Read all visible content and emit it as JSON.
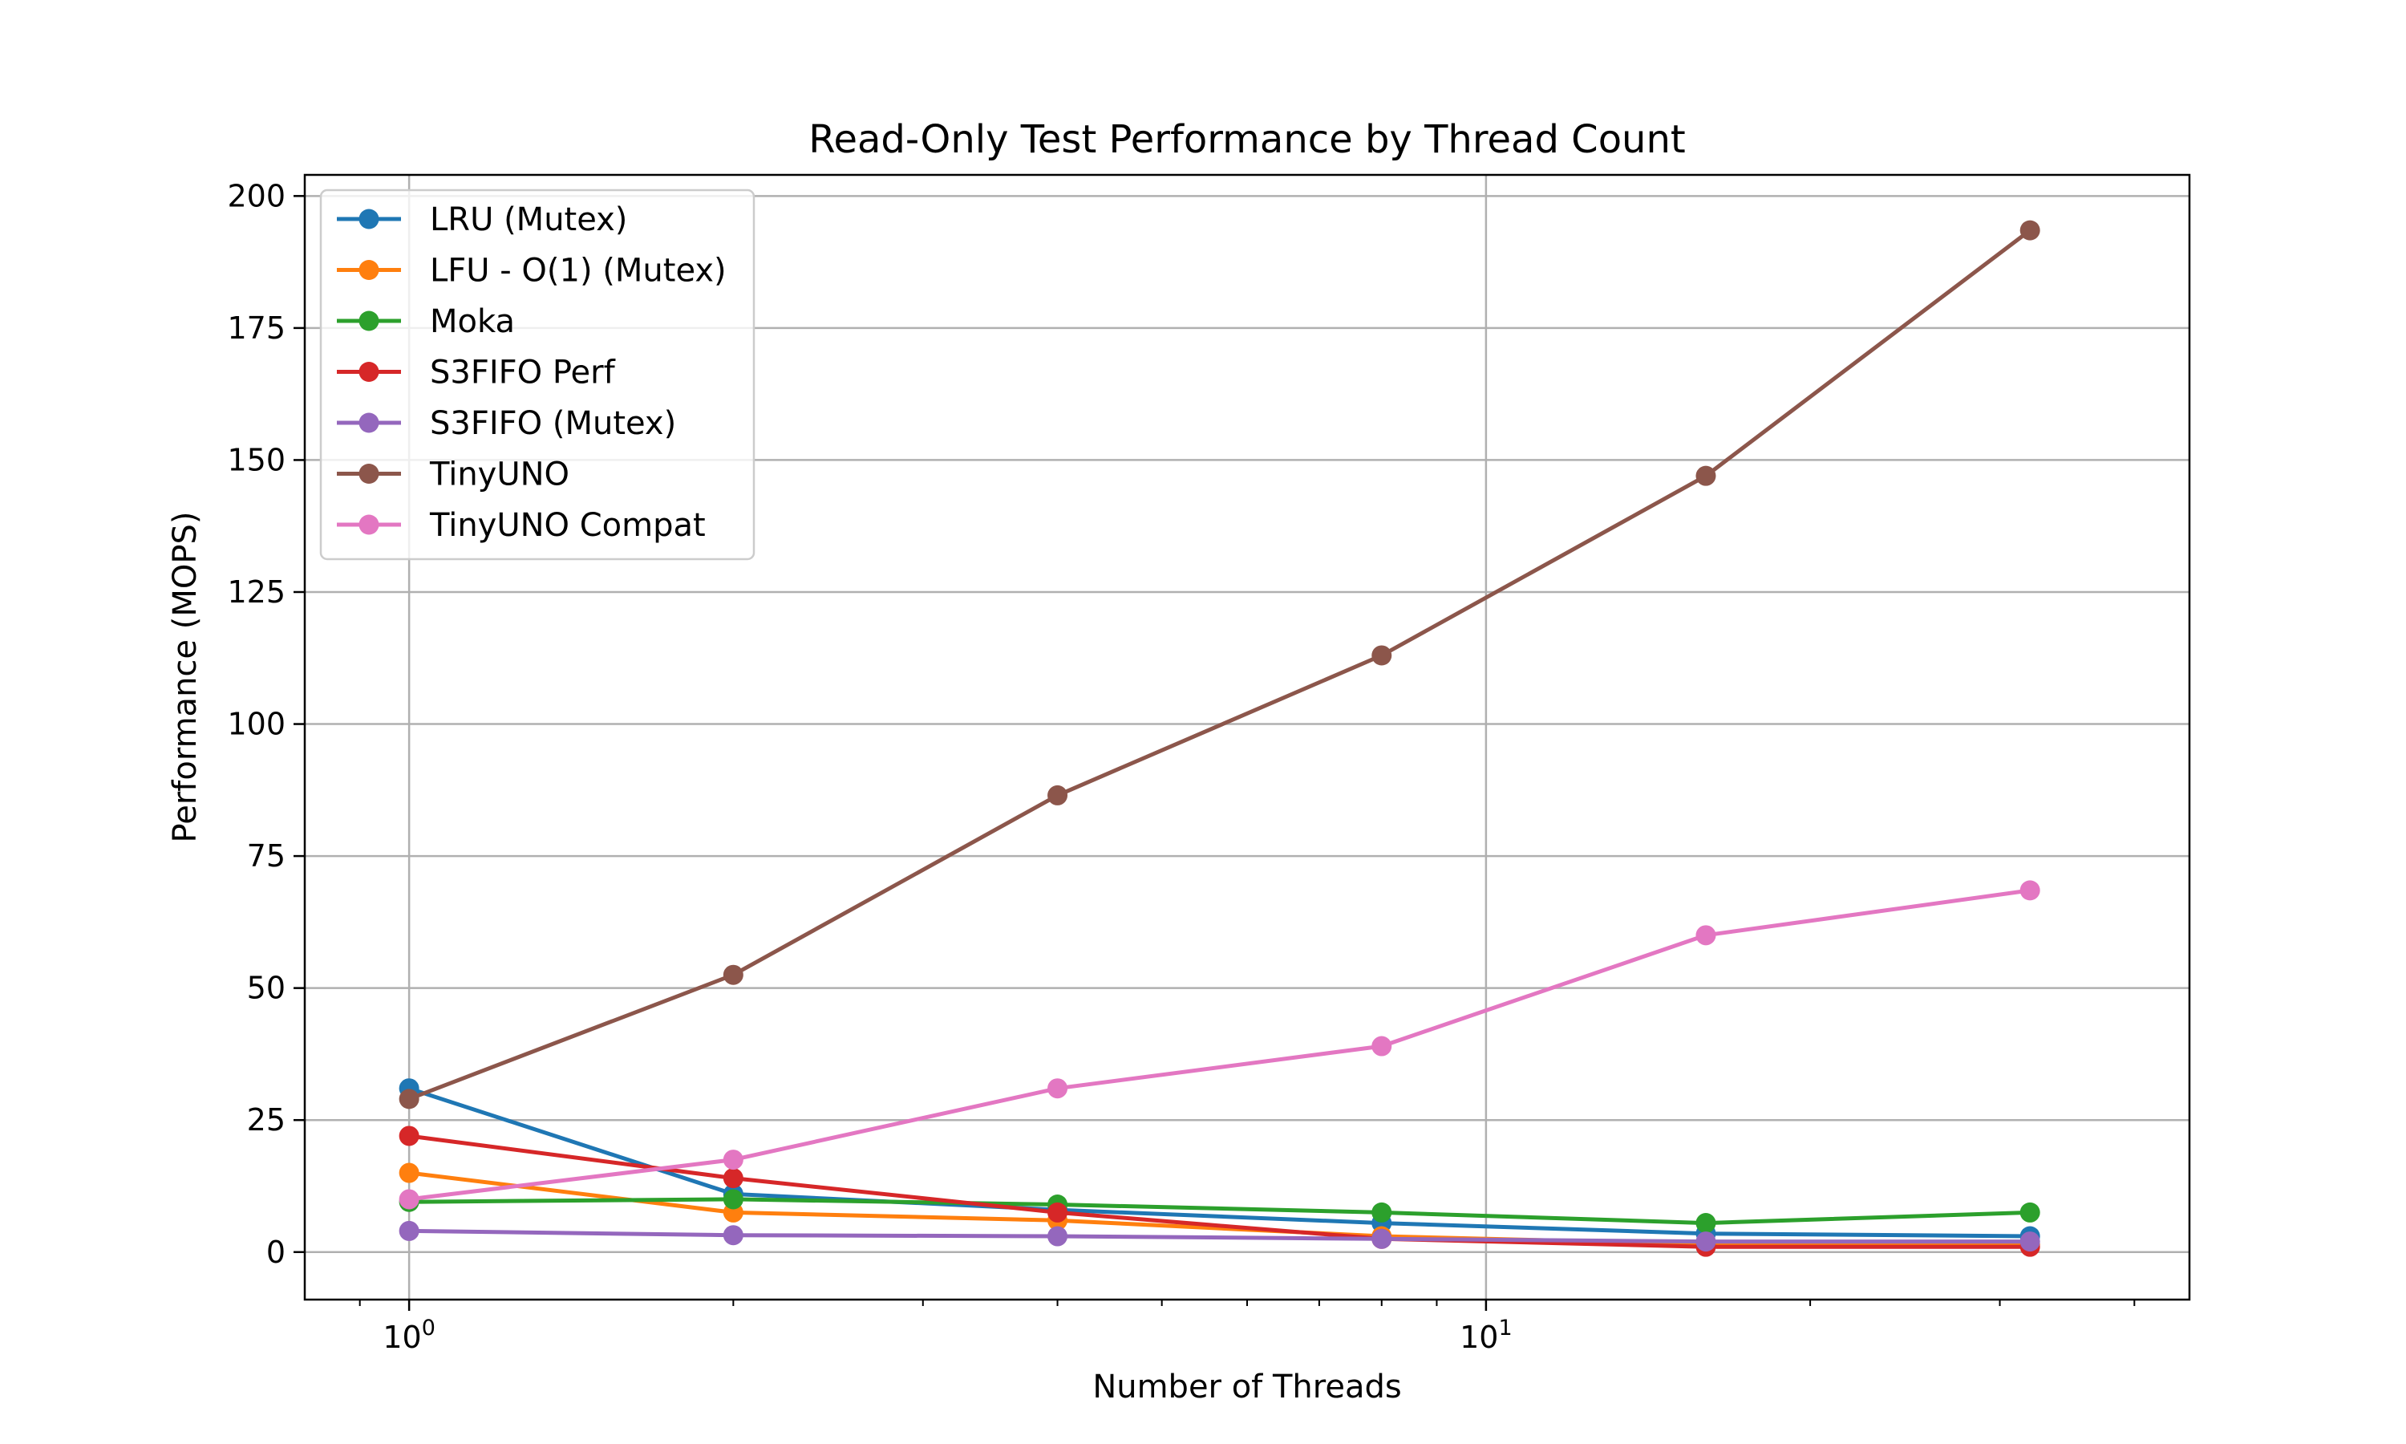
{
  "chart_data": {
    "type": "line",
    "title": "Read-Only Test Performance by Thread Count",
    "xlabel": "Number of Threads",
    "ylabel": "Performance (MOPS)",
    "x_scale": "log",
    "x": [
      1,
      2,
      4,
      8,
      16,
      32
    ],
    "xlim": [
      0.8,
      45
    ],
    "ylim": [
      -9,
      204
    ],
    "x_ticks": [
      {
        "value": 1,
        "base": "10",
        "exp": "0"
      },
      {
        "value": 10,
        "base": "10",
        "exp": "1"
      }
    ],
    "y_ticks": [
      0,
      25,
      50,
      75,
      100,
      125,
      150,
      175,
      200
    ],
    "grid": true,
    "legend_position": "upper-left",
    "series": [
      {
        "name": "LRU (Mutex)",
        "color": "#1f77b4",
        "values": [
          31,
          11,
          8,
          5.5,
          3.5,
          3
        ]
      },
      {
        "name": "LFU - O(1) (Mutex)",
        "color": "#ff7f0e",
        "values": [
          15,
          7.5,
          6,
          3,
          1.5,
          1.5
        ]
      },
      {
        "name": "Moka",
        "color": "#2ca02c",
        "values": [
          9.5,
          10,
          9,
          7.5,
          5.5,
          7.5
        ]
      },
      {
        "name": "S3FIFO Perf",
        "color": "#d62728",
        "values": [
          22,
          14,
          7.5,
          2.5,
          1,
          1
        ]
      },
      {
        "name": "S3FIFO (Mutex)",
        "color": "#9467bd",
        "values": [
          4,
          3.2,
          3,
          2.5,
          2,
          2
        ]
      },
      {
        "name": "TinyUNO",
        "color": "#8c564b",
        "values": [
          29,
          52.5,
          86.5,
          113,
          147,
          193.5
        ]
      },
      {
        "name": "TinyUNO Compat",
        "color": "#e377c2",
        "values": [
          10,
          17.5,
          31,
          39,
          60,
          68.5
        ]
      }
    ]
  }
}
